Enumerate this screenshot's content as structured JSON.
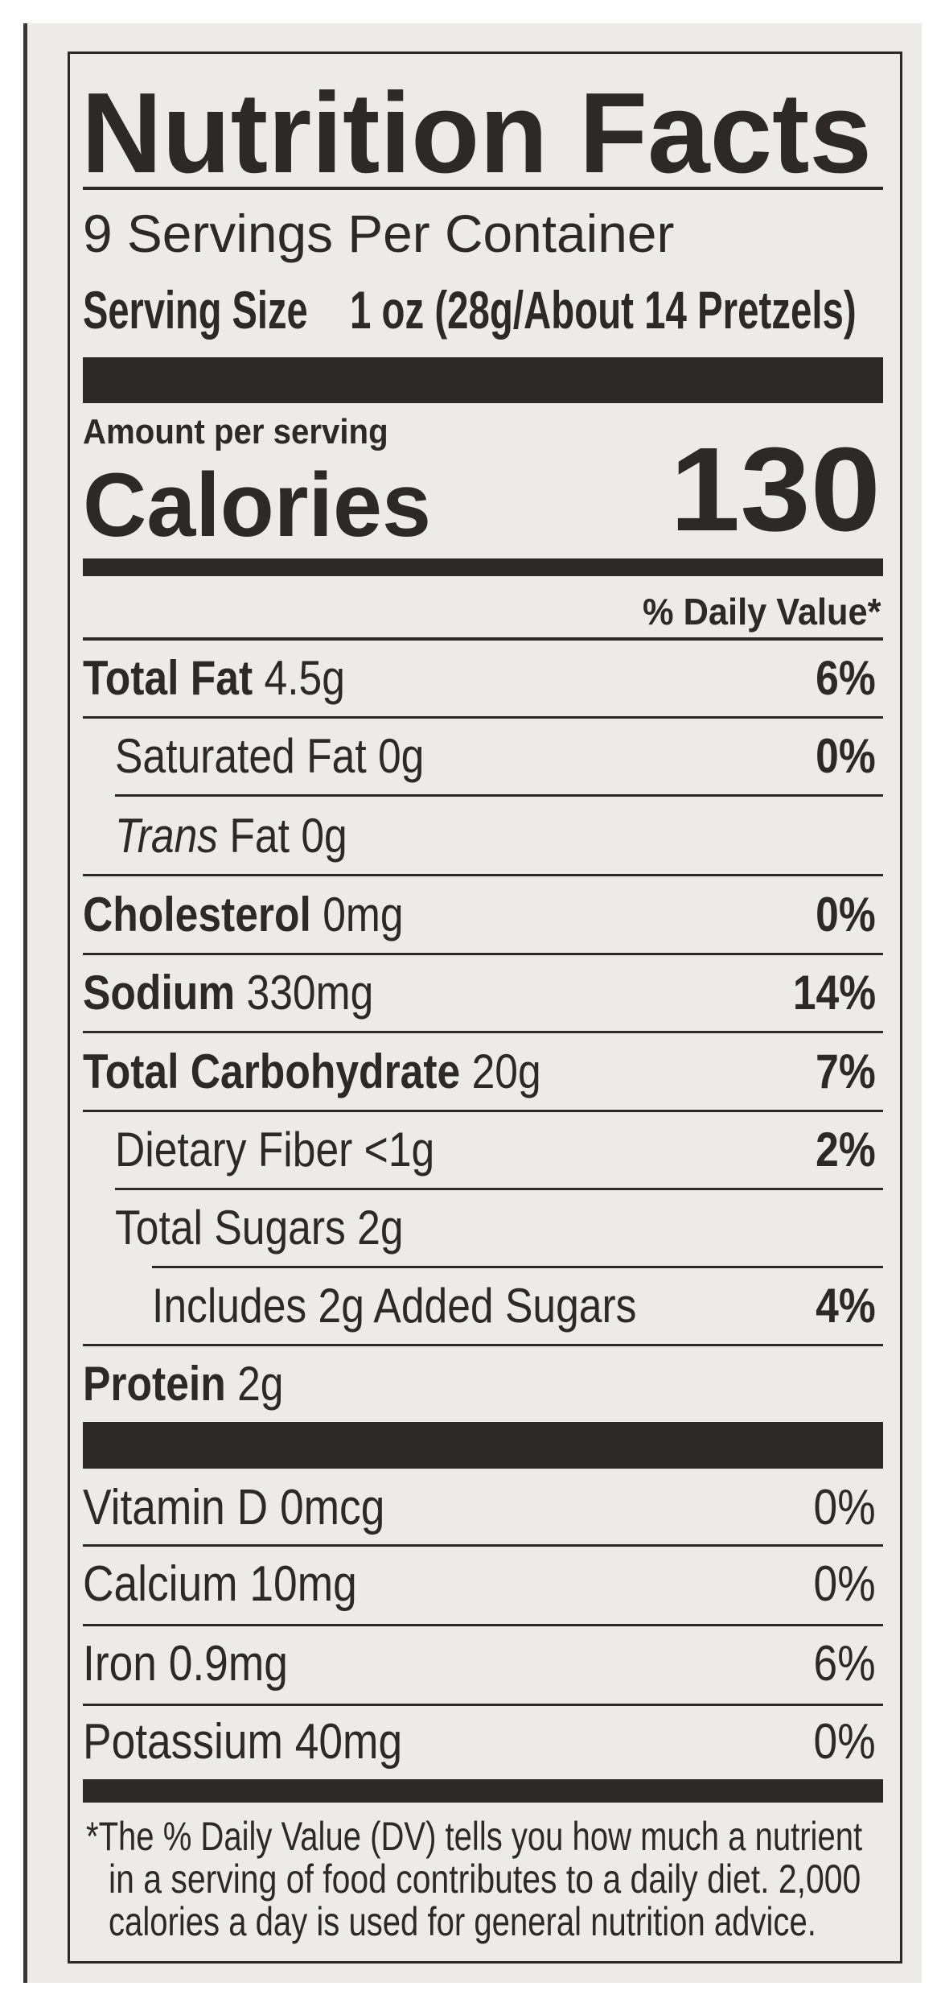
{
  "title": "Nutrition Facts",
  "servings_per_container": "9 Servings Per Container",
  "serving_size_label": "Serving Size",
  "serving_size_value": "1 oz (28g/About 14 Pretzels)",
  "amount_per_serving": "Amount per serving",
  "calories_label": "Calories",
  "calories_value": "130",
  "daily_value_header": "% Daily Value*",
  "nutrients": [
    {
      "label": "Total Fat",
      "amount": "4.5g",
      "dv": "6%",
      "bold": true,
      "indent": 0
    },
    {
      "label": "Saturated Fat",
      "amount": "0g",
      "dv": "0%",
      "bold": false,
      "indent": 1
    },
    {
      "label_italic": "Trans",
      "label": "Fat",
      "amount": "0g",
      "dv": "",
      "bold": false,
      "indent": 1
    },
    {
      "label": "Cholesterol",
      "amount": "0mg",
      "dv": "0%",
      "bold": true,
      "indent": 0
    },
    {
      "label": "Sodium",
      "amount": "330mg",
      "dv": "14%",
      "bold": true,
      "indent": 0
    },
    {
      "label": "Total Carbohydrate",
      "amount": "20g",
      "dv": "7%",
      "bold": true,
      "indent": 0
    },
    {
      "label": "Dietary Fiber",
      "amount": "<1g",
      "dv": "2%",
      "bold": false,
      "indent": 1
    },
    {
      "label": "Total Sugars",
      "amount": "2g",
      "dv": "",
      "bold": false,
      "indent": 1
    },
    {
      "label": "Includes 2g Added Sugars",
      "amount": "",
      "dv": "4%",
      "bold": false,
      "indent": 2
    },
    {
      "label": "Protein",
      "amount": "2g",
      "dv": "",
      "bold": true,
      "indent": 0
    }
  ],
  "vitamins": [
    {
      "label": "Vitamin D 0mcg",
      "dv": "0%"
    },
    {
      "label": "Calcium 10mg",
      "dv": "0%"
    },
    {
      "label": "Iron 0.9mg",
      "dv": "6%"
    },
    {
      "label": "Potassium 40mg",
      "dv": "0%"
    }
  ],
  "footnote": [
    "*The % Daily Value (DV) tells you how much a nutrient",
    "in a serving of food contributes to a daily diet. 2,000",
    "calories a day is used for general nutrition advice."
  ],
  "colors": {
    "ink": "#2d2929",
    "paper": "#ecebea"
  }
}
